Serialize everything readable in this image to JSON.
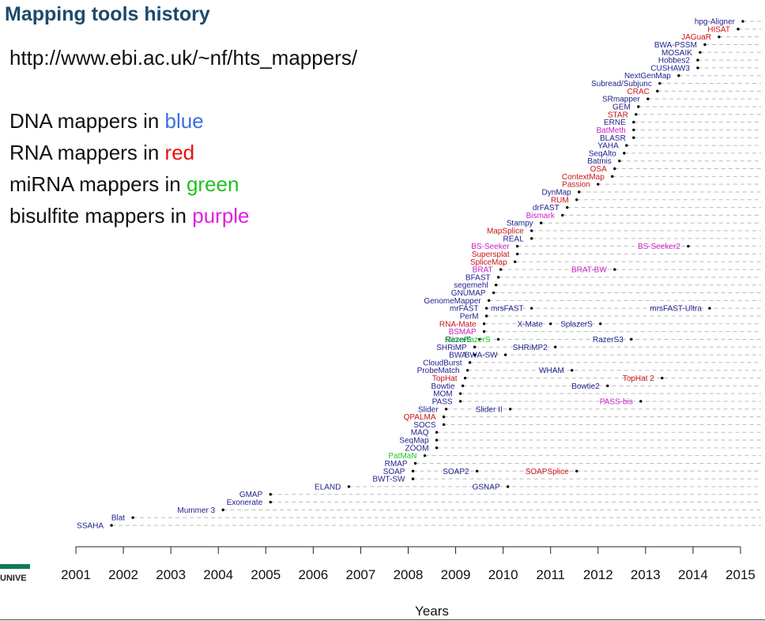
{
  "page": {
    "title": "Mapping tools history",
    "url": "http://www.ebi.ac.uk/~nf/hts_mappers/",
    "legend_lines": [
      {
        "prefix": "DNA mappers in ",
        "word": "blue",
        "color": "#3b6fe0"
      },
      {
        "prefix": "RNA mappers in ",
        "word": "red",
        "color": "#e81010"
      },
      {
        "prefix": "miRNA mappers in ",
        "word": "green",
        "color": "#20c020"
      },
      {
        "prefix": "bisulfite mappers in ",
        "word": "purple",
        "color": "#e020e0"
      }
    ],
    "logo_text": "UNIVE"
  },
  "colors": {
    "dna": "#1e1e8c",
    "rna": "#c81414",
    "mirna": "#1ec81e",
    "bisulfite": "#c81ec8",
    "dash": "#bbbbbb",
    "axis": "#222222"
  },
  "chart_data": {
    "type": "scatter",
    "title": "",
    "xlabel": "Years",
    "ylabel": "",
    "xlim": [
      2000.8,
      2015.45
    ],
    "x_ticks": [
      2001,
      2002,
      2003,
      2004,
      2005,
      2006,
      2007,
      2008,
      2009,
      2010,
      2011,
      2012,
      2013,
      2014,
      2015
    ],
    "grid": "dashed row guide lines",
    "rows": [
      {
        "name": "SSAHA",
        "category": "dna",
        "points": [
          {
            "x": 2001.75
          }
        ]
      },
      {
        "name": "Blat",
        "category": "dna",
        "points": [
          {
            "x": 2002.2
          }
        ]
      },
      {
        "name": "Mummer 3",
        "category": "dna",
        "points": [
          {
            "x": 2004.1
          }
        ]
      },
      {
        "name": "Exonerate",
        "category": "dna",
        "points": [
          {
            "x": 2005.1
          }
        ]
      },
      {
        "name": "GMAP",
        "category": "dna",
        "points": [
          {
            "x": 2005.1
          }
        ]
      },
      {
        "name": "ELAND",
        "category": "dna",
        "points": [
          {
            "x": 2006.75
          },
          {
            "label": "GSNAP",
            "category": "dna",
            "x": 2010.1
          }
        ]
      },
      {
        "name": "BWT-SW",
        "category": "dna",
        "points": [
          {
            "x": 2008.1
          }
        ]
      },
      {
        "name": "SOAP",
        "category": "dna",
        "points": [
          {
            "x": 2008.1
          },
          {
            "label": "SOAP2",
            "category": "dna",
            "x": 2009.45
          },
          {
            "label": "SOAPSplice",
            "category": "rna",
            "x": 2011.55
          }
        ]
      },
      {
        "name": "RMAP",
        "category": "dna",
        "points": [
          {
            "x": 2008.15
          }
        ]
      },
      {
        "name": "PatMaN",
        "category": "mirna",
        "points": [
          {
            "x": 2008.35
          }
        ]
      },
      {
        "name": "ZOOM",
        "category": "dna",
        "points": [
          {
            "x": 2008.6
          }
        ]
      },
      {
        "name": "SeqMap",
        "category": "dna",
        "points": [
          {
            "x": 2008.6
          }
        ]
      },
      {
        "name": "MAQ",
        "category": "dna",
        "points": [
          {
            "x": 2008.6
          }
        ]
      },
      {
        "name": "SOCS",
        "category": "dna",
        "points": [
          {
            "x": 2008.75
          }
        ]
      },
      {
        "name": "QPALMA",
        "category": "rna",
        "points": [
          {
            "x": 2008.75
          }
        ]
      },
      {
        "name": "Slider",
        "category": "dna",
        "points": [
          {
            "x": 2008.8
          },
          {
            "label": "Slider II",
            "category": "dna",
            "x": 2010.15
          }
        ]
      },
      {
        "name": "PASS",
        "category": "dna",
        "points": [
          {
            "x": 2009.1
          },
          {
            "label": "PASS-bis",
            "category": "bisulfite",
            "x": 2012.9
          }
        ]
      },
      {
        "name": "MOM",
        "category": "dna",
        "points": [
          {
            "x": 2009.1
          }
        ]
      },
      {
        "name": "Bowtie",
        "category": "dna",
        "points": [
          {
            "x": 2009.15
          },
          {
            "label": "Bowtie2",
            "category": "dna",
            "x": 2012.2
          }
        ]
      },
      {
        "name": "TopHat",
        "category": "rna",
        "points": [
          {
            "x": 2009.2
          },
          {
            "label": "TopHat 2",
            "category": "rna",
            "x": 2013.35
          }
        ]
      },
      {
        "name": "ProbeMatch",
        "category": "dna",
        "points": [
          {
            "x": 2009.25
          },
          {
            "label": "WHAM",
            "category": "dna",
            "x": 2011.45
          }
        ]
      },
      {
        "name": "CloudBurst",
        "category": "dna",
        "points": [
          {
            "x": 2009.3
          }
        ]
      },
      {
        "name": "BWA",
        "category": "dna",
        "points": [
          {
            "x": 2009.4
          },
          {
            "label": "BWA-SW",
            "category": "dna",
            "x": 2010.05
          }
        ]
      },
      {
        "name": "SHRiMP",
        "category": "dna",
        "points": [
          {
            "x": 2009.4
          },
          {
            "label": "SHRiMP2",
            "category": "dna",
            "x": 2011.1
          }
        ]
      },
      {
        "name": "RazerS",
        "category": "dna",
        "points": [
          {
            "x": 2009.5
          },
          {
            "label": "MicroRazerS",
            "category": "mirna",
            "x": 2009.9
          },
          {
            "label": "RazerS3",
            "category": "dna",
            "x": 2012.7
          }
        ]
      },
      {
        "name": "BSMAP",
        "category": "bisulfite",
        "points": [
          {
            "x": 2009.6
          }
        ]
      },
      {
        "name": "RNA-Mate",
        "category": "rna",
        "points": [
          {
            "x": 2009.6
          },
          {
            "label": "X-Mate",
            "category": "dna",
            "x": 2011.0
          },
          {
            "label": "SplazerS",
            "category": "dna",
            "x": 2012.05
          }
        ]
      },
      {
        "name": "PerM",
        "category": "dna",
        "points": [
          {
            "x": 2009.65
          }
        ]
      },
      {
        "name": "mrFAST",
        "category": "dna",
        "points": [
          {
            "x": 2009.65
          },
          {
            "label": "mrsFAST",
            "category": "dna",
            "x": 2010.6
          },
          {
            "label": "mrsFAST-Ultra",
            "category": "dna",
            "x": 2014.35
          }
        ]
      },
      {
        "name": "GenomeMapper",
        "category": "dna",
        "points": [
          {
            "x": 2009.7
          }
        ]
      },
      {
        "name": "GNUMAP",
        "category": "dna",
        "points": [
          {
            "x": 2009.8
          }
        ]
      },
      {
        "name": "segemehl",
        "category": "dna",
        "points": [
          {
            "x": 2009.85
          }
        ]
      },
      {
        "name": "BFAST",
        "category": "dna",
        "points": [
          {
            "x": 2009.9
          }
        ]
      },
      {
        "name": "BRAT",
        "category": "bisulfite",
        "points": [
          {
            "x": 2009.95
          },
          {
            "label": "BRAT-BW",
            "category": "bisulfite",
            "x": 2012.35
          }
        ]
      },
      {
        "name": "SpliceMap",
        "category": "rna",
        "points": [
          {
            "x": 2010.25
          }
        ]
      },
      {
        "name": "Supersplat",
        "category": "rna",
        "points": [
          {
            "x": 2010.3
          }
        ]
      },
      {
        "name": "BS-Seeker",
        "category": "bisulfite",
        "points": [
          {
            "x": 2010.3
          },
          {
            "label": "BS-Seeker2",
            "category": "bisulfite",
            "x": 2013.9
          }
        ]
      },
      {
        "name": "REAL",
        "category": "dna",
        "points": [
          {
            "x": 2010.6
          }
        ]
      },
      {
        "name": "MapSplice",
        "category": "rna",
        "points": [
          {
            "x": 2010.6
          }
        ]
      },
      {
        "name": "Stampy",
        "category": "dna",
        "points": [
          {
            "x": 2010.8
          }
        ]
      },
      {
        "name": "Bismark",
        "category": "bisulfite",
        "points": [
          {
            "x": 2011.25
          }
        ]
      },
      {
        "name": "drFAST",
        "category": "dna",
        "points": [
          {
            "x": 2011.35
          }
        ]
      },
      {
        "name": "RUM",
        "category": "rna",
        "points": [
          {
            "x": 2011.55
          }
        ]
      },
      {
        "name": "DynMap",
        "category": "dna",
        "points": [
          {
            "x": 2011.6
          }
        ]
      },
      {
        "name": "Passion",
        "category": "rna",
        "points": [
          {
            "x": 2012.0
          }
        ]
      },
      {
        "name": "ContextMap",
        "category": "rna",
        "points": [
          {
            "x": 2012.3
          }
        ]
      },
      {
        "name": "OSA",
        "category": "rna",
        "points": [
          {
            "x": 2012.35
          }
        ]
      },
      {
        "name": "Batmis",
        "category": "dna",
        "points": [
          {
            "x": 2012.45
          }
        ]
      },
      {
        "name": "SeqAlto",
        "category": "dna",
        "points": [
          {
            "x": 2012.55
          }
        ]
      },
      {
        "name": "YAHA",
        "category": "dna",
        "points": [
          {
            "x": 2012.6
          }
        ]
      },
      {
        "name": "BLASR",
        "category": "dna",
        "points": [
          {
            "x": 2012.75
          }
        ]
      },
      {
        "name": "BatMeth",
        "category": "bisulfite",
        "points": [
          {
            "x": 2012.75
          }
        ]
      },
      {
        "name": "ERNE",
        "category": "dna",
        "points": [
          {
            "x": 2012.75
          }
        ]
      },
      {
        "name": "STAR",
        "category": "rna",
        "points": [
          {
            "x": 2012.8
          }
        ]
      },
      {
        "name": "GEM",
        "category": "dna",
        "points": [
          {
            "x": 2012.85
          }
        ]
      },
      {
        "name": "SRmapper",
        "category": "dna",
        "points": [
          {
            "x": 2013.05
          }
        ]
      },
      {
        "name": "CRAC",
        "category": "rna",
        "points": [
          {
            "x": 2013.25
          }
        ]
      },
      {
        "name": "Subread/Subjunc",
        "category": "dna",
        "points": [
          {
            "x": 2013.3
          }
        ]
      },
      {
        "name": "NextGenMap",
        "category": "dna",
        "points": [
          {
            "x": 2013.7
          }
        ]
      },
      {
        "name": "CUSHAW3",
        "category": "dna",
        "points": [
          {
            "x": 2014.1
          }
        ]
      },
      {
        "name": "Hobbes2",
        "category": "dna",
        "points": [
          {
            "x": 2014.1
          }
        ]
      },
      {
        "name": "MOSAIK",
        "category": "dna",
        "points": [
          {
            "x": 2014.15
          }
        ]
      },
      {
        "name": "BWA-PSSM",
        "category": "dna",
        "points": [
          {
            "x": 2014.25
          }
        ]
      },
      {
        "name": "JAGuaR",
        "category": "rna",
        "points": [
          {
            "x": 2014.55
          }
        ]
      },
      {
        "name": "HISAT",
        "category": "rna",
        "points": [
          {
            "x": 2014.95
          }
        ]
      },
      {
        "name": "hpg-Aligner",
        "category": "dna",
        "points": [
          {
            "x": 2015.05
          }
        ]
      }
    ]
  }
}
